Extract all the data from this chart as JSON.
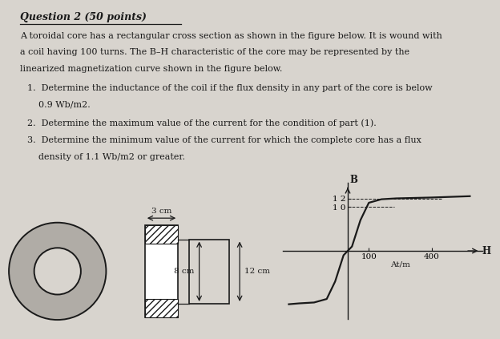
{
  "bg_color": "#d8d4ce",
  "title": "Question 2 (50 points)",
  "paragraph_lines": [
    "A toroidal core has a rectangular cross section as shown in the figure below. It is wound with",
    "a coil having 100 turns. The B–H characteristic of the core may be represented by the",
    "linearized magnetization curve shown in the figure below."
  ],
  "items": [
    [
      "1.  Determine the inductance of the coil if the flux density in any part of the core is below",
      "    0.9 Wb/m2."
    ],
    [
      "2.  Determine the maximum value of the current for the condition of part (1)."
    ],
    [
      "3.  Determine the minimum value of the current for which the complete core has a flux",
      "    density of 1.1 Wb/m2 or greater."
    ]
  ],
  "fig_label_3cm": "3 cm",
  "fig_label_8cm": "8 cm",
  "fig_label_12cm": "12 cm",
  "bh_xlabel": "H",
  "bh_ylabel": "B",
  "bh_xunit": "At/m",
  "bh_xtick_vals": [
    100,
    400
  ],
  "bh_xtick_labels": [
    "100",
    "400"
  ],
  "bh_ytick_vals": [
    1.0,
    1.2
  ],
  "bh_ytick_labels": [
    "1 0",
    "1 2"
  ],
  "bh_curve_x": [
    -280,
    -230,
    -160,
    -100,
    -60,
    -20,
    0,
    20,
    60,
    100,
    160,
    230,
    400,
    580
  ],
  "bh_curve_y": [
    -1.22,
    -1.2,
    -1.18,
    -1.1,
    -0.7,
    -0.1,
    0.0,
    0.1,
    0.7,
    1.1,
    1.18,
    1.2,
    1.22,
    1.25
  ],
  "text_color": "#1a1a1a",
  "line_color": "#1a1a1a",
  "toroid_outer_color": "#b0aca6",
  "toroid_inner_color": "#d8d4ce"
}
